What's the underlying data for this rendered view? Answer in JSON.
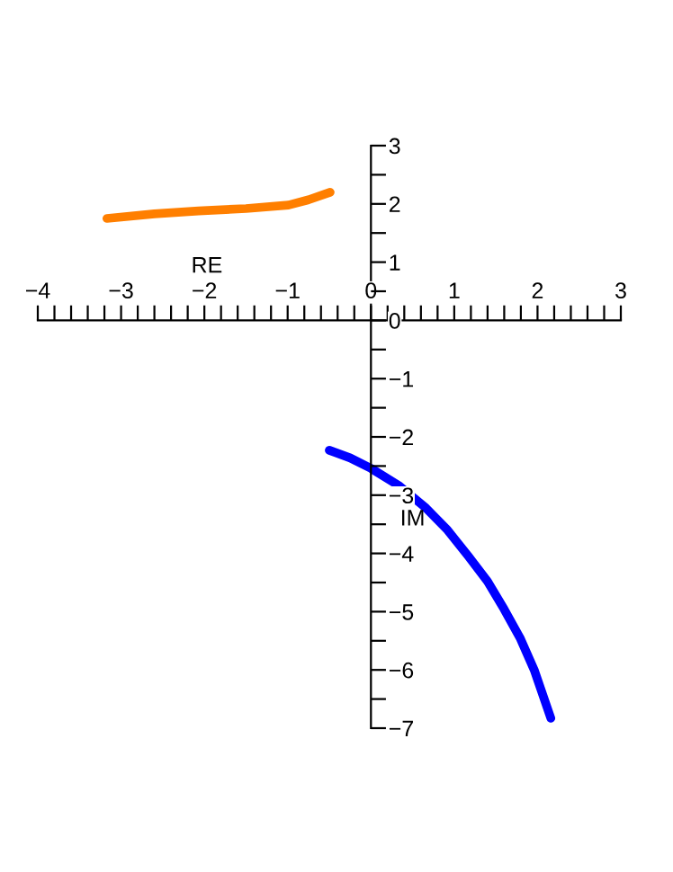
{
  "chart_data": {
    "type": "line",
    "xlabel": "RE",
    "ylabel": "IM",
    "series": [
      {
        "color": "#ff7f00",
        "x": [
          -3.17,
          -2.6,
          -2.07,
          -1.5,
          -0.99,
          -0.75,
          -0.49
        ],
        "values": [
          1.75,
          1.83,
          1.88,
          1.92,
          1.98,
          2.07,
          2.2
        ]
      },
      {
        "color": "#0000ff",
        "x": [
          -0.5,
          -0.25,
          0,
          0.33,
          0.66,
          0.92,
          1.17,
          1.4,
          1.6,
          1.79,
          1.96,
          2.16
        ],
        "values": [
          -2.23,
          -2.36,
          -2.54,
          -2.83,
          -3.22,
          -3.6,
          -4.05,
          -4.48,
          -4.96,
          -5.45,
          -6.0,
          -6.83
        ]
      }
    ],
    "xlim": [
      -4,
      3
    ],
    "ylim": [
      -7,
      3
    ],
    "xticks": [
      -4,
      {
        "value": -3.8,
        "label": null
      },
      {
        "value": -3.6,
        "label": null
      },
      {
        "value": -3.4,
        "label": null
      },
      {
        "value": -3.2,
        "label": null
      },
      -3,
      {
        "value": -2.8,
        "label": null
      },
      {
        "value": -2.6,
        "label": null
      },
      {
        "value": -2.4,
        "label": null
      },
      {
        "value": -2.2,
        "label": null
      },
      -2,
      {
        "value": -1.8,
        "label": null
      },
      {
        "value": -1.6,
        "label": null
      },
      {
        "value": -1.4,
        "label": null
      },
      {
        "value": -1.2,
        "label": null
      },
      -1,
      {
        "value": -0.8,
        "label": null
      },
      {
        "value": -0.6,
        "label": null
      },
      {
        "value": -0.4,
        "label": null
      },
      {
        "value": -0.2,
        "label": null
      },
      0,
      {
        "value": 0.2,
        "label": null
      },
      {
        "value": 0.4,
        "label": null
      },
      {
        "value": 0.6,
        "label": null
      },
      {
        "value": 0.8,
        "label": null
      },
      1,
      {
        "value": 1.2,
        "label": null
      },
      {
        "value": 1.4,
        "label": null
      },
      {
        "value": 1.6,
        "label": null
      },
      {
        "value": 1.8,
        "label": null
      },
      2,
      {
        "value": 2.2,
        "label": null
      },
      {
        "value": 2.4,
        "label": null
      },
      {
        "value": 2.6,
        "label": null
      },
      {
        "value": 2.8,
        "label": null
      },
      3
    ],
    "yticks": [
      -7,
      {
        "value": -6.5,
        "label": null
      },
      -6,
      {
        "value": -5.5,
        "label": null
      },
      -5,
      {
        "value": -4.5,
        "label": null
      },
      -4,
      {
        "value": -3.5,
        "label": null
      },
      -3,
      {
        "value": -2.5,
        "label": null
      },
      -2,
      {
        "value": -1.5,
        "label": null
      },
      -1,
      {
        "value": -0.5,
        "label": null
      },
      0,
      {
        "value": 0.5,
        "label": null
      },
      1,
      {
        "value": 1.5,
        "label": null
      },
      2,
      {
        "value": 2.5,
        "label": null
      },
      3
    ],
    "grid": false,
    "legend": false,
    "marker": "none",
    "line_style": "solid"
  }
}
